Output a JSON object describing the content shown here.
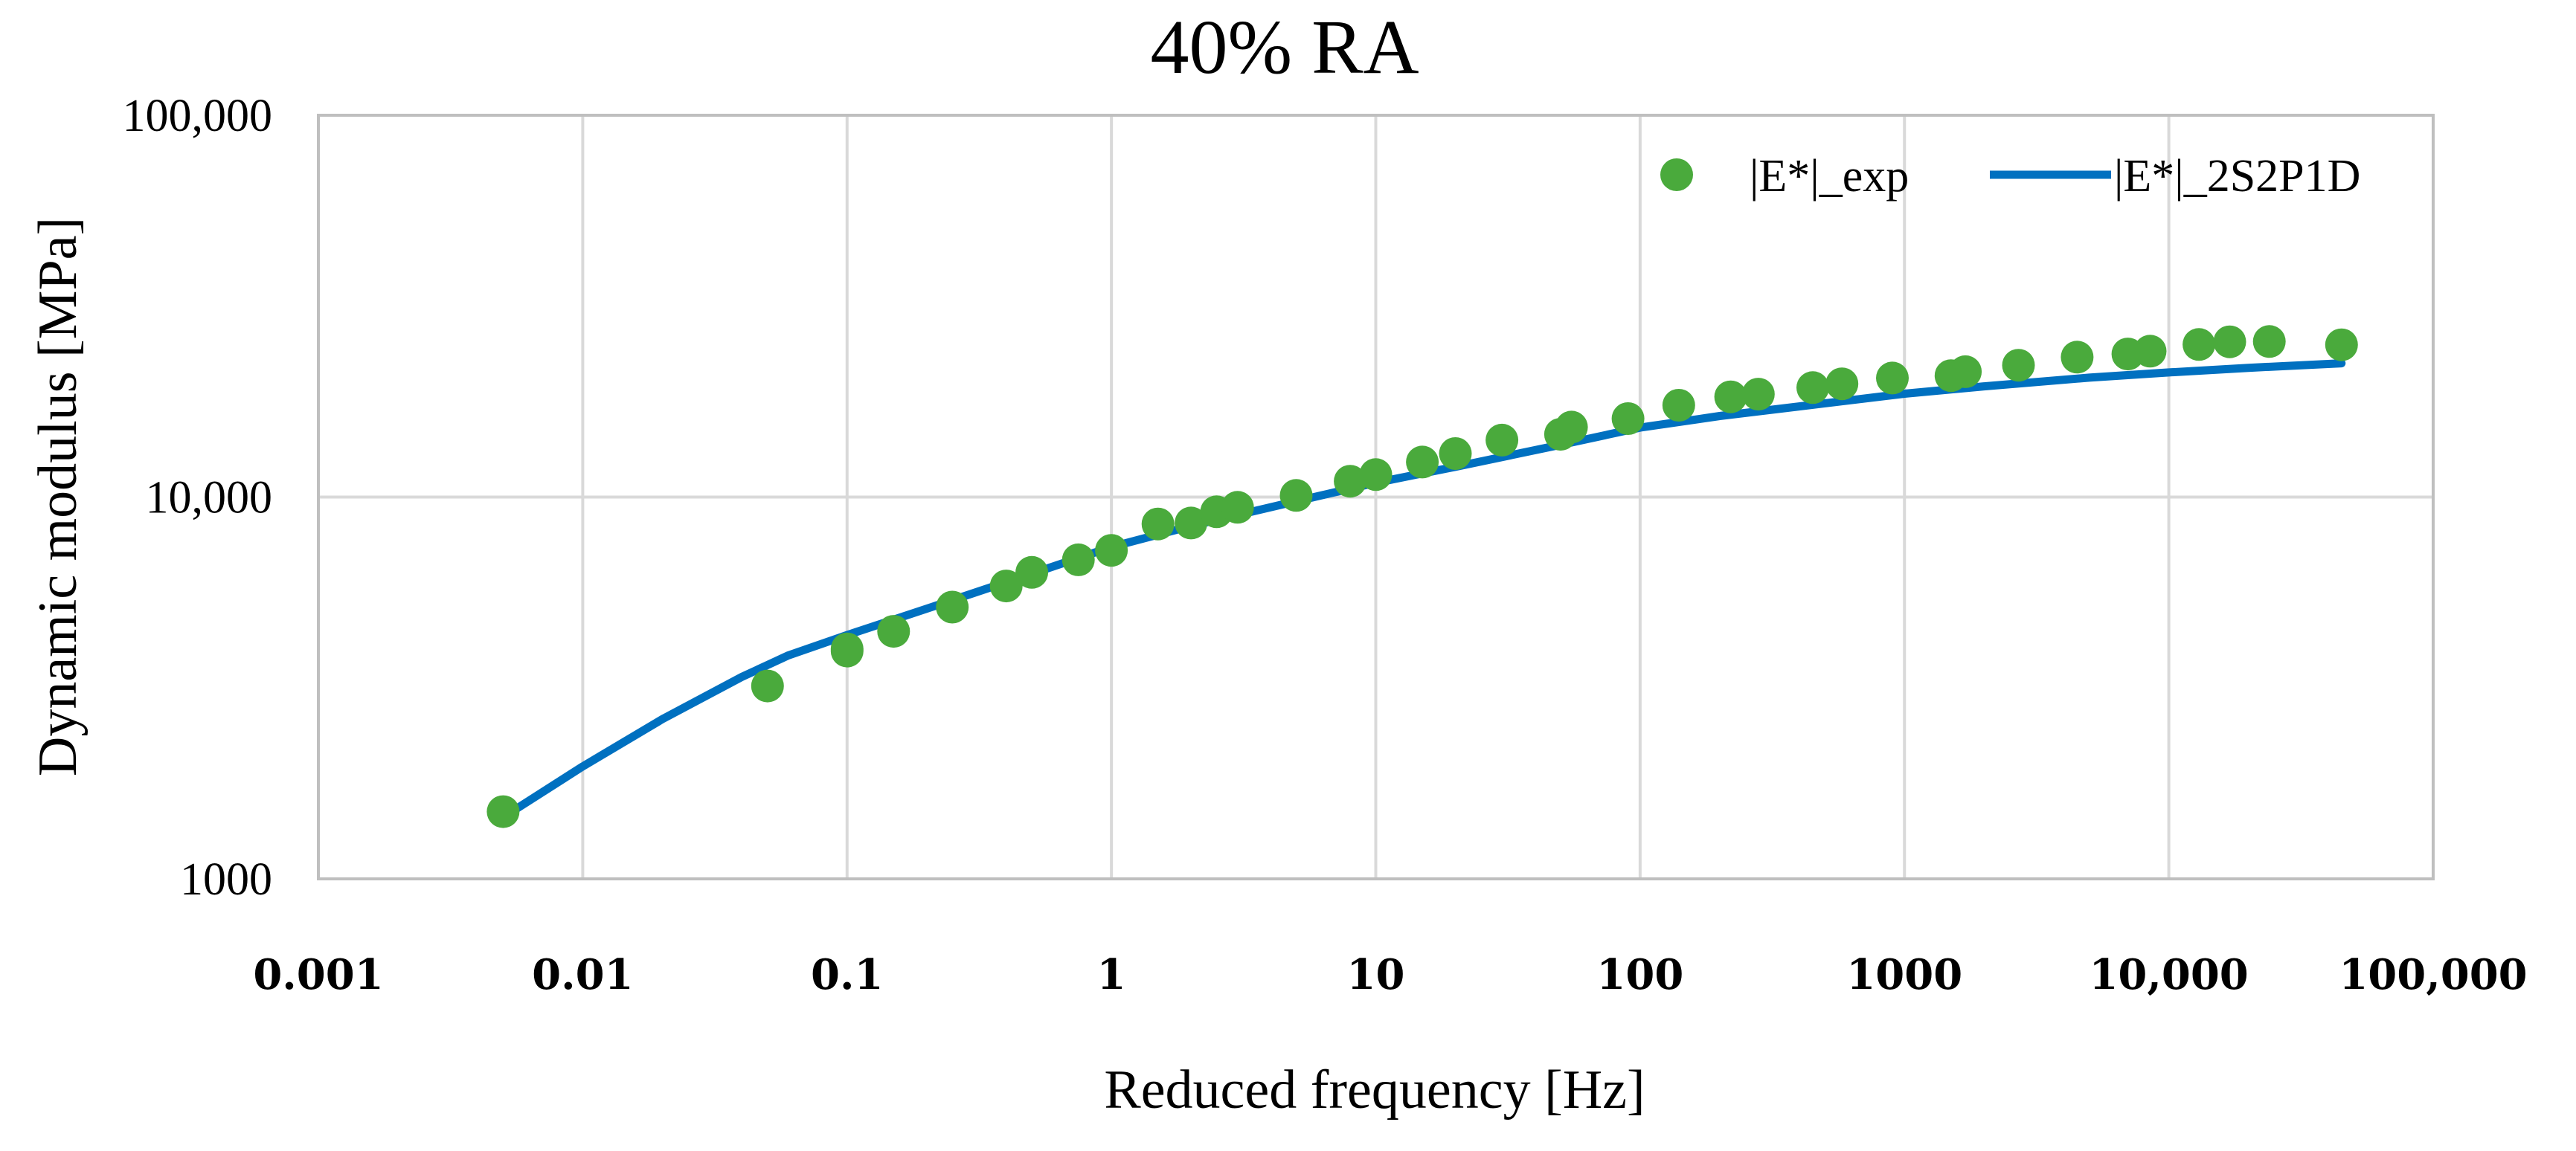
{
  "chart_data": {
    "type": "scatter",
    "title": "40% RA",
    "xlabel": "Reduced frequency [Hz]",
    "ylabel": "Dynamic modulus [MPa]",
    "xscale": "log",
    "yscale": "log",
    "xlim": [
      0.001,
      100000
    ],
    "ylim": [
      1000,
      100000
    ],
    "grid": true,
    "legend_position": "top-right",
    "x_tick_values": [
      0.001,
      0.01,
      0.1,
      1,
      10,
      100,
      1000,
      10000,
      100000
    ],
    "x_tick_labels": [
      "0.001",
      "0.01",
      "0.1",
      "1",
      "10",
      "100",
      "1000",
      "10,000",
      "100,000"
    ],
    "y_tick_values": [
      1000,
      10000,
      100000
    ],
    "y_tick_labels": [
      "1000",
      "10,000",
      "100,000"
    ],
    "series": [
      {
        "name": "|E*|_exp",
        "kind": "scatter",
        "color": "#4aaa3c",
        "points": [
          [
            0.005,
            1500
          ],
          [
            0.05,
            3200
          ],
          [
            0.1,
            3950
          ],
          [
            0.1,
            4000
          ],
          [
            0.15,
            4450
          ],
          [
            0.25,
            5150
          ],
          [
            0.4,
            5850
          ],
          [
            0.5,
            6350
          ],
          [
            0.75,
            6850
          ],
          [
            1.0,
            7250
          ],
          [
            1.5,
            8500
          ],
          [
            2.0,
            8550
          ],
          [
            2.5,
            9150
          ],
          [
            3.0,
            9400
          ],
          [
            5.0,
            10100
          ],
          [
            8.0,
            11000
          ],
          [
            10,
            11450
          ],
          [
            15,
            12350
          ],
          [
            20,
            13000
          ],
          [
            30,
            14100
          ],
          [
            50,
            14600
          ],
          [
            55,
            15250
          ],
          [
            90,
            16050
          ],
          [
            140,
            17400
          ],
          [
            220,
            18300
          ],
          [
            280,
            18600
          ],
          [
            450,
            19350
          ],
          [
            580,
            19800
          ],
          [
            900,
            20500
          ],
          [
            1500,
            20800
          ],
          [
            1700,
            21300
          ],
          [
            2700,
            22150
          ],
          [
            4500,
            23250
          ],
          [
            7000,
            23700
          ],
          [
            8500,
            24100
          ],
          [
            13000,
            25100
          ],
          [
            17000,
            25500
          ],
          [
            24000,
            25550
          ],
          [
            45000,
            25050
          ]
        ]
      },
      {
        "name": "|E*|_2S2P1D",
        "kind": "line",
        "color": "#0070c0",
        "points": [
          [
            0.005,
            1450
          ],
          [
            0.01,
            1970
          ],
          [
            0.02,
            2620
          ],
          [
            0.04,
            3380
          ],
          [
            0.06,
            3850
          ],
          [
            0.1,
            4350
          ],
          [
            0.2,
            5100
          ],
          [
            0.5,
            6300
          ],
          [
            1,
            7400
          ],
          [
            2,
            8400
          ],
          [
            5,
            9750
          ],
          [
            10,
            10900
          ],
          [
            20,
            12000
          ],
          [
            50,
            13700
          ],
          [
            100,
            15200
          ],
          [
            200,
            16300
          ],
          [
            500,
            17600
          ],
          [
            1000,
            18650
          ],
          [
            2000,
            19500
          ],
          [
            5000,
            20550
          ],
          [
            10000,
            21200
          ],
          [
            20000,
            21800
          ],
          [
            45000,
            22400
          ]
        ]
      }
    ]
  }
}
